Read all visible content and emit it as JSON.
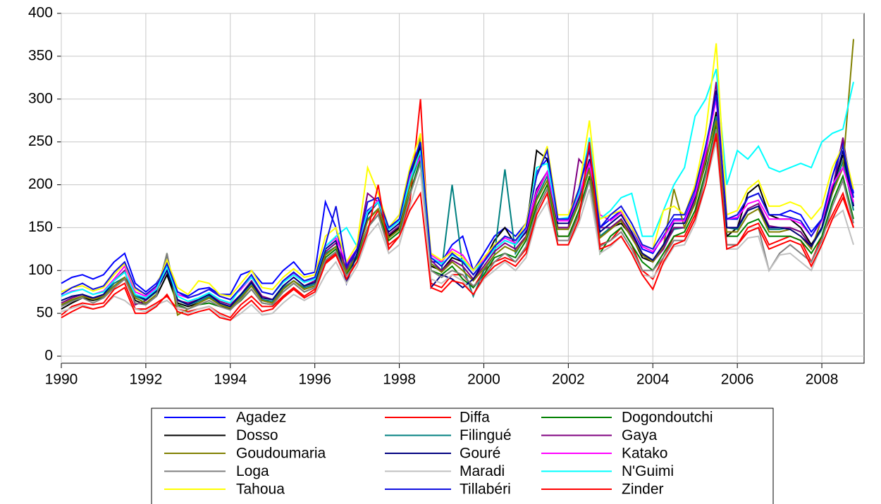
{
  "chart_data": {
    "type": "line",
    "x": [
      1990,
      1990.25,
      1990.5,
      1990.75,
      1991,
      1991.25,
      1991.5,
      1991.75,
      1992,
      1992.25,
      1992.5,
      1992.75,
      1993,
      1993.25,
      1993.5,
      1993.75,
      1994,
      1994.25,
      1994.5,
      1994.75,
      1995,
      1995.25,
      1995.5,
      1995.75,
      1996,
      1996.25,
      1996.5,
      1996.75,
      1997,
      1997.25,
      1997.5,
      1997.75,
      1998,
      1998.25,
      1998.5,
      1998.75,
      1999,
      1999.25,
      1999.5,
      1999.75,
      2000,
      2000.25,
      2000.5,
      2000.75,
      2001,
      2001.25,
      2001.5,
      2001.75,
      2002,
      2002.25,
      2002.5,
      2002.75,
      2003,
      2003.25,
      2003.5,
      2003.75,
      2004,
      2004.25,
      2004.5,
      2004.75,
      2005,
      2005.25,
      2005.5,
      2005.75,
      2006,
      2006.25,
      2006.5,
      2006.75,
      2007,
      2007.25,
      2007.5,
      2007.75,
      2008,
      2008.25,
      2008.5,
      2008.75
    ],
    "xlim": [
      1990,
      2009
    ],
    "xticks": [
      1990,
      1992,
      1994,
      1996,
      1998,
      2000,
      2002,
      2004,
      2006,
      2008
    ],
    "ylim": [
      0,
      400
    ],
    "yticks": [
      0,
      50,
      100,
      150,
      200,
      250,
      300,
      350,
      400
    ],
    "grid": true,
    "series": [
      {
        "name": "Agadez",
        "color": "#0000ff",
        "values": [
          85,
          92,
          95,
          90,
          95,
          110,
          120,
          85,
          75,
          85,
          105,
          75,
          70,
          78,
          80,
          72,
          72,
          95,
          100,
          85,
          85,
          100,
          110,
          95,
          98,
          180,
          150,
          95,
          125,
          170,
          180,
          150,
          165,
          215,
          250,
          110,
          110,
          130,
          140,
          100,
          120,
          140,
          150,
          140,
          155,
          215,
          230,
          160,
          160,
          195,
          240,
          150,
          160,
          170,
          150,
          125,
          120,
          140,
          160,
          160,
          190,
          240,
          300,
          160,
          160,
          185,
          190,
          165,
          165,
          170,
          165,
          145,
          160,
          210,
          250,
          190
        ]
      },
      {
        "name": "Diffa",
        "color": "#ff0000",
        "values": [
          48,
          58,
          62,
          60,
          62,
          78,
          85,
          55,
          55,
          62,
          70,
          55,
          52,
          55,
          58,
          50,
          45,
          60,
          70,
          58,
          58,
          70,
          80,
          70,
          78,
          110,
          120,
          95,
          115,
          150,
          170,
          130,
          140,
          180,
          300,
          85,
          80,
          95,
          95,
          80,
          100,
          110,
          115,
          110,
          125,
          170,
          195,
          140,
          140,
          165,
          210,
          130,
          135,
          150,
          130,
          100,
          90,
          115,
          140,
          140,
          165,
          210,
          255,
          130,
          130,
          150,
          155,
          130,
          135,
          140,
          135,
          110,
          140,
          165,
          190,
          150
        ]
      },
      {
        "name": "Dogondoutchi",
        "color": "#008000",
        "values": [
          60,
          65,
          68,
          65,
          68,
          80,
          90,
          68,
          62,
          70,
          95,
          60,
          55,
          60,
          62,
          58,
          55,
          65,
          78,
          62,
          60,
          75,
          85,
          75,
          80,
          115,
          125,
          95,
          115,
          150,
          165,
          135,
          145,
          190,
          230,
          100,
          95,
          105,
          90,
          80,
          95,
          115,
          120,
          115,
          135,
          175,
          200,
          140,
          140,
          170,
          210,
          120,
          140,
          150,
          130,
          110,
          100,
          120,
          140,
          145,
          170,
          215,
          270,
          140,
          140,
          155,
          160,
          140,
          140,
          140,
          135,
          120,
          140,
          180,
          210,
          160
        ]
      },
      {
        "name": "Dosso",
        "color": "#000000",
        "values": [
          55,
          62,
          68,
          65,
          70,
          80,
          90,
          65,
          60,
          70,
          95,
          62,
          58,
          62,
          68,
          60,
          55,
          68,
          82,
          65,
          62,
          78,
          88,
          78,
          82,
          118,
          128,
          98,
          118,
          165,
          180,
          140,
          150,
          205,
          245,
          105,
          100,
          115,
          110,
          95,
          110,
          135,
          150,
          130,
          145,
          240,
          230,
          150,
          150,
          180,
          220,
          140,
          150,
          155,
          140,
          115,
          110,
          130,
          150,
          150,
          180,
          225,
          285,
          140,
          150,
          190,
          200,
          165,
          160,
          160,
          150,
          130,
          150,
          195,
          235,
          175
        ]
      },
      {
        "name": "Filingué",
        "color": "#008080",
        "values": [
          65,
          70,
          72,
          66,
          70,
          85,
          92,
          70,
          65,
          75,
          118,
          65,
          60,
          64,
          70,
          62,
          57,
          70,
          85,
          66,
          64,
          80,
          88,
          80,
          84,
          120,
          128,
          100,
          118,
          160,
          172,
          138,
          148,
          200,
          235,
          108,
          100,
          200,
          105,
          70,
          100,
          118,
          218,
          120,
          140,
          185,
          210,
          150,
          150,
          180,
          220,
          140,
          150,
          160,
          140,
          118,
          112,
          128,
          148,
          150,
          180,
          228,
          280,
          150,
          148,
          170,
          175,
          148,
          148,
          150,
          145,
          128,
          148,
          190,
          228,
          170
        ]
      },
      {
        "name": "Gaya",
        "color": "#800080",
        "values": [
          62,
          68,
          72,
          66,
          72,
          88,
          100,
          60,
          65,
          78,
          110,
          65,
          62,
          66,
          72,
          64,
          60,
          72,
          88,
          70,
          66,
          82,
          92,
          82,
          88,
          122,
          132,
          102,
          125,
          190,
          180,
          142,
          152,
          210,
          235,
          112,
          100,
          112,
          105,
          90,
          105,
          122,
          132,
          125,
          140,
          190,
          215,
          150,
          150,
          230,
          215,
          150,
          150,
          160,
          142,
          118,
          110,
          125,
          150,
          150,
          180,
          232,
          320,
          150,
          150,
          172,
          178,
          152,
          150,
          150,
          145,
          128,
          150,
          195,
          255,
          175
        ]
      },
      {
        "name": "Goudoumaria",
        "color": "#808000",
        "values": [
          60,
          66,
          70,
          66,
          70,
          82,
          92,
          68,
          62,
          72,
          120,
          48,
          55,
          62,
          68,
          60,
          56,
          68,
          82,
          65,
          62,
          78,
          88,
          78,
          82,
          118,
          128,
          98,
          118,
          158,
          172,
          138,
          148,
          198,
          255,
          108,
          98,
          110,
          100,
          88,
          102,
          118,
          128,
          122,
          138,
          182,
          205,
          148,
          148,
          178,
          218,
          138,
          148,
          158,
          138,
          118,
          110,
          128,
          195,
          150,
          178,
          228,
          275,
          145,
          145,
          165,
          172,
          145,
          145,
          148,
          140,
          125,
          160,
          190,
          220,
          370
        ]
      },
      {
        "name": "Gouré",
        "color": "#000080",
        "values": [
          65,
          70,
          72,
          68,
          72,
          88,
          98,
          72,
          66,
          76,
          100,
          66,
          60,
          66,
          72,
          62,
          58,
          72,
          86,
          68,
          66,
          82,
          92,
          82,
          86,
          125,
          135,
          85,
          120,
          165,
          180,
          145,
          155,
          210,
          250,
          80,
          95,
          90,
          80,
          90,
          110,
          125,
          135,
          130,
          145,
          195,
          215,
          155,
          155,
          185,
          230,
          145,
          155,
          165,
          145,
          120,
          112,
          130,
          155,
          155,
          185,
          240,
          310,
          150,
          150,
          170,
          175,
          150,
          150,
          148,
          140,
          128,
          150,
          195,
          240,
          175
        ]
      },
      {
        "name": "Katako",
        "color": "#ff00ff",
        "values": [
          70,
          76,
          78,
          72,
          76,
          90,
          105,
          75,
          70,
          80,
          112,
          72,
          68,
          72,
          78,
          70,
          66,
          78,
          92,
          75,
          72,
          86,
          96,
          86,
          92,
          128,
          138,
          108,
          125,
          168,
          182,
          148,
          158,
          210,
          232,
          118,
          110,
          125,
          118,
          100,
          112,
          128,
          138,
          132,
          148,
          192,
          215,
          158,
          158,
          188,
          225,
          165,
          158,
          168,
          150,
          128,
          122,
          138,
          158,
          158,
          188,
          238,
          300,
          160,
          162,
          178,
          182,
          160,
          160,
          160,
          155,
          140,
          158,
          200,
          220,
          180
        ]
      },
      {
        "name": "Loga",
        "color": "#808080",
        "values": [
          58,
          64,
          68,
          62,
          68,
          80,
          90,
          62,
          60,
          70,
          120,
          58,
          55,
          60,
          65,
          58,
          54,
          66,
          78,
          62,
          60,
          75,
          85,
          75,
          80,
          112,
          122,
          94,
          110,
          150,
          165,
          125,
          140,
          188,
          225,
          100,
          92,
          100,
          95,
          82,
          92,
          110,
          120,
          110,
          128,
          170,
          195,
          135,
          135,
          165,
          205,
          128,
          135,
          145,
          125,
          100,
          100,
          115,
          135,
          135,
          160,
          210,
          265,
          130,
          130,
          145,
          150,
          100,
          120,
          130,
          120,
          110,
          135,
          175,
          205,
          155
        ]
      },
      {
        "name": "Maradi",
        "color": "#c0c0c0",
        "values": [
          52,
          56,
          60,
          55,
          58,
          70,
          65,
          55,
          52,
          60,
          65,
          55,
          50,
          55,
          58,
          48,
          42,
          50,
          60,
          48,
          50,
          62,
          72,
          65,
          72,
          95,
          110,
          85,
          105,
          140,
          155,
          120,
          130,
          175,
          215,
          90,
          85,
          95,
          88,
          72,
          90,
          100,
          110,
          100,
          115,
          160,
          180,
          130,
          130,
          155,
          195,
          120,
          128,
          140,
          120,
          95,
          92,
          108,
          128,
          130,
          155,
          200,
          250,
          125,
          125,
          138,
          140,
          100,
          118,
          120,
          110,
          100,
          130,
          160,
          170,
          130
        ]
      },
      {
        "name": "N'Guimi",
        "color": "#00ffff",
        "values": [
          70,
          75,
          78,
          72,
          75,
          88,
          98,
          72,
          68,
          78,
          105,
          70,
          64,
          68,
          74,
          66,
          62,
          80,
          92,
          75,
          72,
          86,
          95,
          86,
          90,
          128,
          140,
          150,
          128,
          168,
          180,
          148,
          158,
          205,
          240,
          115,
          108,
          118,
          112,
          100,
          110,
          125,
          135,
          130,
          150,
          220,
          225,
          160,
          162,
          190,
          255,
          160,
          170,
          185,
          190,
          140,
          140,
          170,
          200,
          220,
          280,
          300,
          335,
          200,
          240,
          230,
          245,
          220,
          215,
          220,
          225,
          220,
          250,
          260,
          265,
          320
        ]
      },
      {
        "name": "Tahoua",
        "color": "#ffff00",
        "values": [
          75,
          80,
          82,
          76,
          80,
          95,
          108,
          78,
          72,
          82,
          112,
          80,
          72,
          88,
          85,
          72,
          70,
          85,
          100,
          80,
          78,
          92,
          102,
          92,
          95,
          140,
          150,
          110,
          130,
          220,
          190,
          150,
          165,
          220,
          260,
          120,
          112,
          122,
          115,
          100,
          115,
          130,
          140,
          135,
          155,
          210,
          245,
          165,
          165,
          195,
          275,
          160,
          165,
          170,
          150,
          130,
          125,
          170,
          175,
          165,
          200,
          260,
          365,
          165,
          170,
          195,
          205,
          175,
          175,
          180,
          175,
          160,
          175,
          220,
          245,
          195
        ]
      },
      {
        "name": "Tillabéri",
        "color": "#1010e0",
        "values": [
          72,
          80,
          85,
          78,
          82,
          98,
          110,
          80,
          72,
          82,
          108,
          75,
          68,
          72,
          78,
          70,
          66,
          80,
          95,
          75,
          72,
          88,
          98,
          88,
          92,
          130,
          175,
          105,
          125,
          180,
          185,
          150,
          160,
          215,
          250,
          115,
          105,
          120,
          110,
          95,
          110,
          128,
          140,
          135,
          150,
          210,
          240,
          160,
          160,
          195,
          245,
          150,
          165,
          175,
          155,
          130,
          125,
          145,
          165,
          165,
          195,
          245,
          305,
          160,
          165,
          185,
          190,
          165,
          165,
          162,
          158,
          140,
          160,
          210,
          245,
          185
        ]
      },
      {
        "name": "Zinder",
        "color": "#ff0000",
        "values": [
          45,
          52,
          58,
          55,
          58,
          72,
          80,
          50,
          50,
          58,
          72,
          52,
          48,
          52,
          55,
          45,
          42,
          55,
          65,
          52,
          55,
          68,
          78,
          68,
          75,
          108,
          118,
          90,
          110,
          145,
          200,
          125,
          140,
          170,
          190,
          80,
          75,
          88,
          85,
          72,
          92,
          105,
          112,
          105,
          120,
          165,
          190,
          130,
          130,
          160,
          250,
          125,
          130,
          140,
          120,
          95,
          78,
          110,
          130,
          135,
          160,
          200,
          260,
          125,
          130,
          145,
          150,
          125,
          130,
          135,
          130,
          105,
          130,
          160,
          185,
          150
        ]
      }
    ]
  }
}
